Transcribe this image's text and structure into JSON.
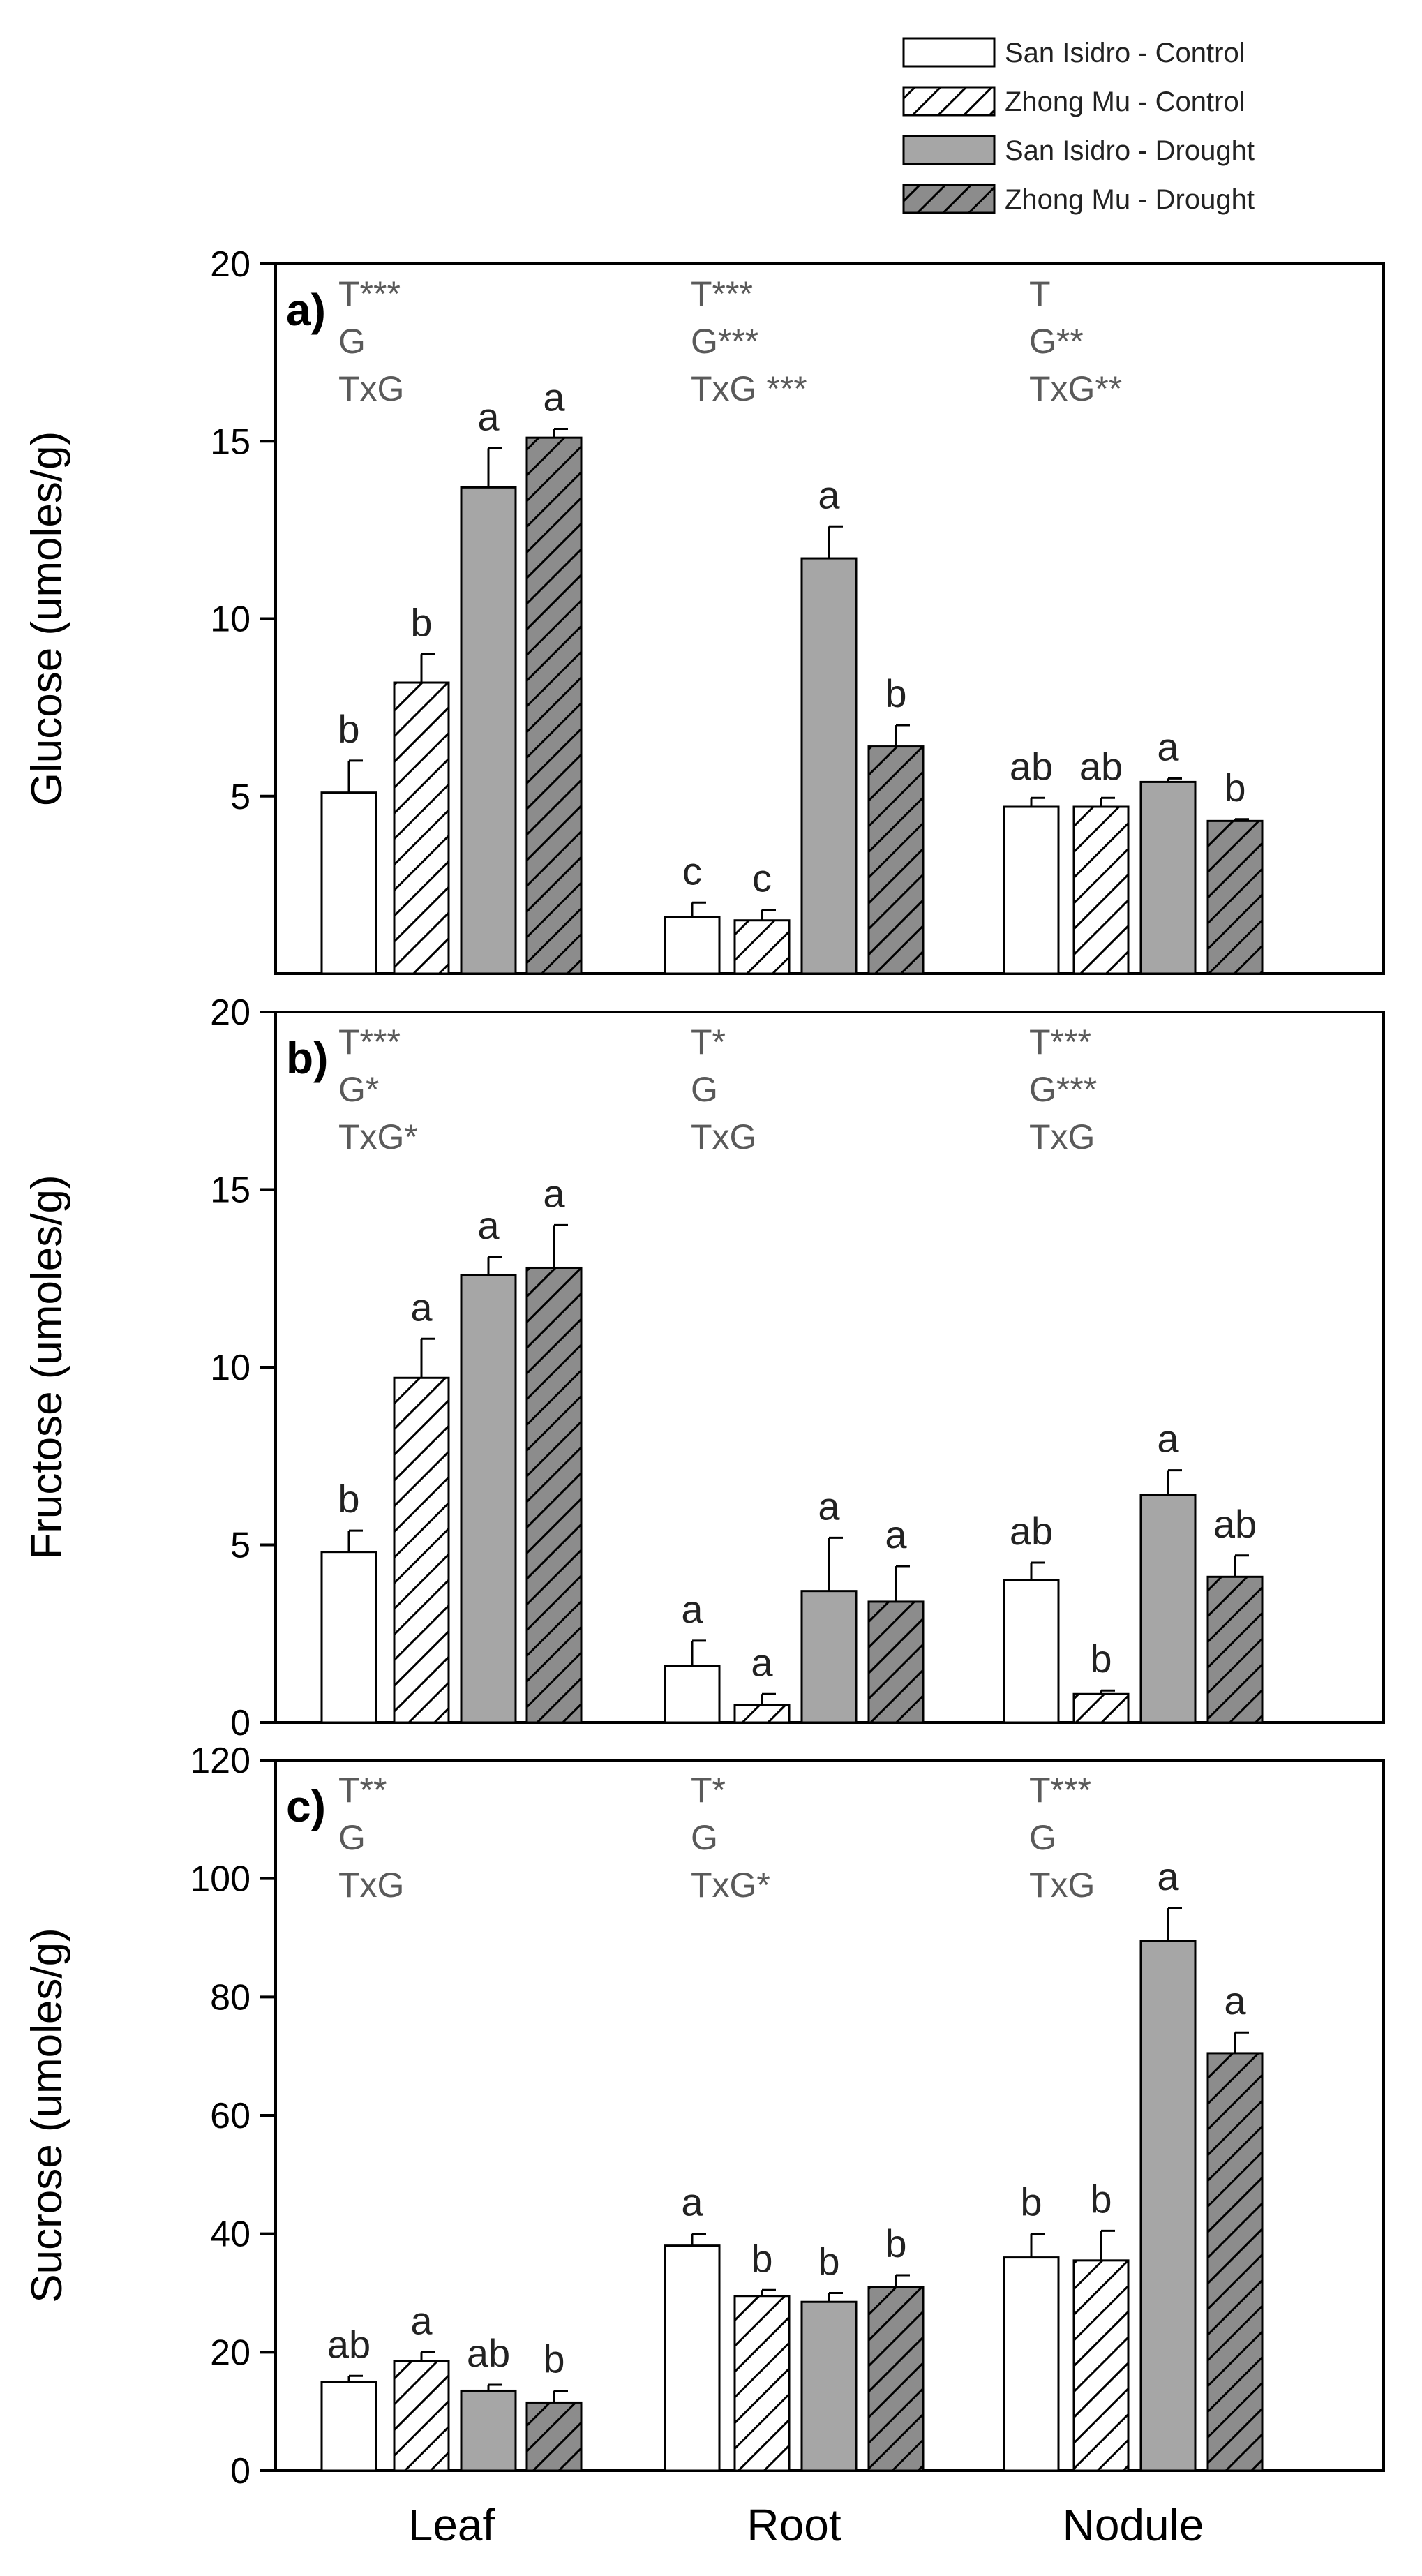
{
  "legend": {
    "placement": "top-right",
    "entries": [
      {
        "label": "San Isidro - Control",
        "fill": "white"
      },
      {
        "label": "Zhong Mu - Control",
        "fill": "hatch-white"
      },
      {
        "label": "San Isidro - Drought",
        "fill": "gray"
      },
      {
        "label": "Zhong Mu - Drought",
        "fill": "hatch-gray"
      }
    ]
  },
  "colors": {
    "bar_gray": "#a6a6a6",
    "hatch_gray": "#8c8c8c",
    "stat_text": "#5a5a5a",
    "axis": "#000000"
  },
  "x_categories": [
    "Leaf",
    "Root",
    "Nodule"
  ],
  "chart_data": [
    {
      "type": "bar",
      "panel_label": "a)",
      "ylabel": "Glucose (umoles/g)",
      "ylim": [
        0,
        20
      ],
      "yticks": [
        5,
        10,
        15,
        20
      ],
      "categories": [
        "Leaf",
        "Root",
        "Nodule"
      ],
      "series": [
        {
          "name": "San Isidro - Control",
          "values": [
            5.1,
            1.6,
            4.7
          ],
          "errors": [
            0.9,
            0.4,
            0.25
          ],
          "letters": [
            "b",
            "c",
            "ab"
          ]
        },
        {
          "name": "Zhong Mu - Control",
          "values": [
            8.2,
            1.5,
            4.7
          ],
          "errors": [
            0.8,
            0.3,
            0.25
          ],
          "letters": [
            "b",
            "c",
            "ab"
          ]
        },
        {
          "name": "San Isidro - Drought",
          "values": [
            13.7,
            11.7,
            5.4
          ],
          "errors": [
            1.1,
            0.9,
            0.1
          ],
          "letters": [
            "a",
            "a",
            "a"
          ]
        },
        {
          "name": "Zhong Mu - Drought",
          "values": [
            15.1,
            6.4,
            4.3
          ],
          "errors": [
            0.25,
            0.6,
            0.05
          ],
          "letters": [
            "a",
            "b",
            "b"
          ]
        }
      ],
      "stats": [
        [
          "T***",
          "G",
          "TxG"
        ],
        [
          "T***",
          "G***",
          "TxG ***"
        ],
        [
          "T",
          "G**",
          "TxG**"
        ]
      ]
    },
    {
      "type": "bar",
      "panel_label": "b)",
      "ylabel": "Fructose (umoles/g)",
      "ylim": [
        0,
        20
      ],
      "yticks": [
        0,
        5,
        10,
        15,
        20
      ],
      "categories": [
        "Leaf",
        "Root",
        "Nodule"
      ],
      "series": [
        {
          "name": "San Isidro - Control",
          "values": [
            4.8,
            1.6,
            4.0
          ],
          "errors": [
            0.6,
            0.7,
            0.5
          ],
          "letters": [
            "b",
            "a",
            "ab"
          ]
        },
        {
          "name": "Zhong Mu - Control",
          "values": [
            9.7,
            0.5,
            0.8
          ],
          "errors": [
            1.1,
            0.3,
            0.1
          ],
          "letters": [
            "a",
            "a",
            "b"
          ]
        },
        {
          "name": "San Isidro - Drought",
          "values": [
            12.6,
            3.7,
            6.4
          ],
          "errors": [
            0.5,
            1.5,
            0.7
          ],
          "letters": [
            "a",
            "a",
            "a"
          ]
        },
        {
          "name": "Zhong Mu - Drought",
          "values": [
            12.8,
            3.4,
            4.1
          ],
          "errors": [
            1.2,
            1.0,
            0.6
          ],
          "letters": [
            "a",
            "a",
            "ab"
          ]
        }
      ],
      "stats": [
        [
          "T***",
          "G*",
          "TxG*"
        ],
        [
          "T*",
          "G",
          "TxG"
        ],
        [
          "T***",
          "G***",
          "TxG"
        ]
      ]
    },
    {
      "type": "bar",
      "panel_label": "c)",
      "ylabel": "Sucrose (umoles/g)",
      "ylim": [
        0,
        120
      ],
      "yticks": [
        0,
        20,
        40,
        60,
        80,
        100,
        120
      ],
      "categories": [
        "Leaf",
        "Root",
        "Nodule"
      ],
      "series": [
        {
          "name": "San Isidro - Control",
          "values": [
            15,
            38,
            36
          ],
          "errors": [
            1,
            2,
            4
          ],
          "letters": [
            "ab",
            "a",
            "b"
          ]
        },
        {
          "name": "Zhong Mu - Control",
          "values": [
            18.5,
            29.5,
            35.5
          ],
          "errors": [
            1.5,
            1,
            5
          ],
          "letters": [
            "a",
            "b",
            "b"
          ]
        },
        {
          "name": "San Isidro - Drought",
          "values": [
            13.5,
            28.5,
            89.5
          ],
          "errors": [
            1,
            1.5,
            5.5
          ],
          "letters": [
            "ab",
            "b",
            "a"
          ]
        },
        {
          "name": "Zhong Mu - Drought",
          "values": [
            11.5,
            31,
            70.5
          ],
          "errors": [
            2,
            2,
            3.5
          ],
          "letters": [
            "b",
            "b",
            "a"
          ]
        }
      ],
      "stats": [
        [
          "T**",
          "G",
          "TxG"
        ],
        [
          "T*",
          "G",
          "TxG*"
        ],
        [
          "T***",
          "G",
          "TxG"
        ]
      ]
    }
  ]
}
